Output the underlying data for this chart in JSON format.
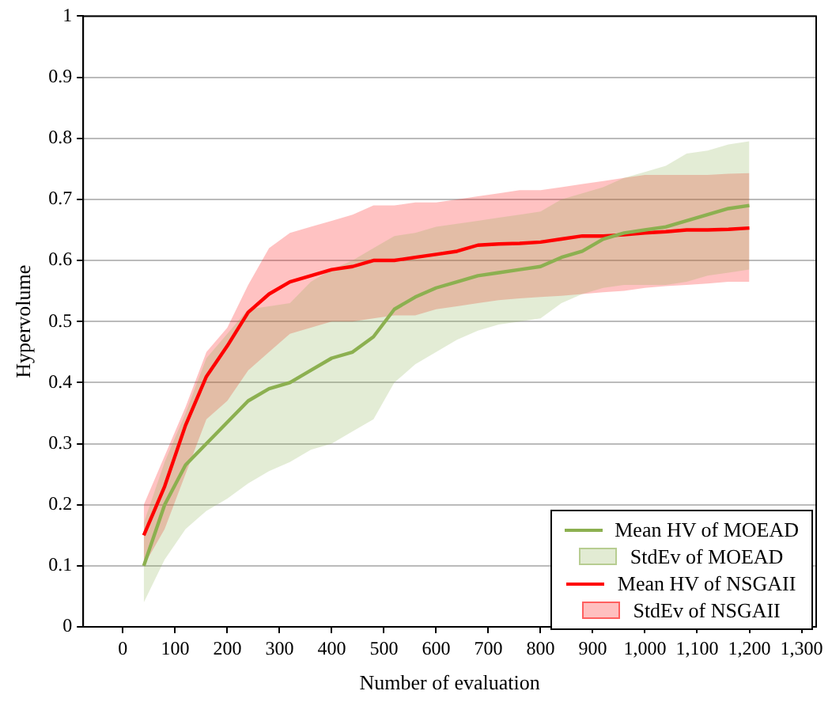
{
  "chart_data": {
    "type": "line",
    "xlabel": "Number of evaluation",
    "ylabel": "Hypervolume",
    "x": [
      40,
      80,
      120,
      160,
      200,
      240,
      280,
      320,
      360,
      400,
      440,
      480,
      520,
      560,
      600,
      640,
      680,
      720,
      760,
      800,
      840,
      880,
      920,
      960,
      1000,
      1040,
      1080,
      1120,
      1160,
      1200
    ],
    "xlim": [
      -76,
      1328
    ],
    "xticks": [
      0,
      100,
      200,
      300,
      400,
      500,
      600,
      700,
      800,
      900,
      {
        "value": 1000,
        "label": "1,000"
      },
      {
        "value": 1100,
        "label": "1,100"
      },
      {
        "value": 1200,
        "label": "1,200"
      },
      {
        "value": 1300,
        "label": "1,300"
      }
    ],
    "ylim": [
      0,
      1
    ],
    "yticks": [
      0,
      0.1,
      0.2,
      0.3,
      0.4,
      0.5,
      0.6,
      0.7,
      0.8,
      0.9,
      1
    ],
    "grid": "y",
    "legend": "bottom right",
    "marker": "none",
    "line_style": "solid",
    "annotations": [
      "StdEv of MOEAD",
      "StdEv of NSGAII"
    ],
    "series": [
      {
        "name": "Mean HV of MOEAD",
        "color": "#8cb050",
        "values": [
          0.1,
          0.2,
          0.265,
          0.3,
          0.335,
          0.37,
          0.39,
          0.4,
          0.42,
          0.44,
          0.45,
          0.475,
          0.52,
          0.54,
          0.555,
          0.565,
          0.575,
          0.58,
          0.585,
          0.59,
          0.605,
          0.615,
          0.635,
          0.645,
          0.65,
          0.655,
          0.665,
          0.675,
          0.685,
          0.69
        ],
        "upper": [
          0.17,
          0.27,
          0.35,
          0.44,
          0.48,
          0.52,
          0.525,
          0.53,
          0.565,
          0.585,
          0.6,
          0.62,
          0.64,
          0.645,
          0.655,
          0.66,
          0.665,
          0.67,
          0.675,
          0.68,
          0.7,
          0.71,
          0.72,
          0.735,
          0.745,
          0.755,
          0.775,
          0.78,
          0.79,
          0.795
        ],
        "lower": [
          0.04,
          0.11,
          0.16,
          0.19,
          0.21,
          0.235,
          0.255,
          0.27,
          0.29,
          0.3,
          0.32,
          0.34,
          0.4,
          0.43,
          0.45,
          0.47,
          0.485,
          0.495,
          0.5,
          0.505,
          0.53,
          0.545,
          0.555,
          0.56,
          0.56,
          0.56,
          0.565,
          0.575,
          0.58,
          0.585
        ]
      },
      {
        "name": "Mean HV of NSGAII",
        "color": "#ff0000",
        "values": [
          0.15,
          0.23,
          0.33,
          0.41,
          0.46,
          0.515,
          0.545,
          0.565,
          0.575,
          0.585,
          0.59,
          0.6,
          0.6,
          0.605,
          0.61,
          0.615,
          0.625,
          0.627,
          0.628,
          0.63,
          0.635,
          0.64,
          0.64,
          0.642,
          0.645,
          0.647,
          0.65,
          0.65,
          0.651,
          0.653
        ],
        "upper": [
          0.2,
          0.28,
          0.36,
          0.45,
          0.49,
          0.56,
          0.62,
          0.645,
          0.655,
          0.665,
          0.675,
          0.69,
          0.69,
          0.695,
          0.695,
          0.7,
          0.705,
          0.71,
          0.715,
          0.715,
          0.72,
          0.725,
          0.73,
          0.735,
          0.74,
          0.74,
          0.74,
          0.74,
          0.742,
          0.743
        ],
        "lower": [
          0.1,
          0.16,
          0.25,
          0.34,
          0.37,
          0.42,
          0.45,
          0.48,
          0.49,
          0.5,
          0.5,
          0.505,
          0.51,
          0.51,
          0.52,
          0.525,
          0.53,
          0.535,
          0.538,
          0.54,
          0.542,
          0.545,
          0.548,
          0.55,
          0.555,
          0.558,
          0.56,
          0.562,
          0.565,
          0.565
        ]
      }
    ]
  }
}
